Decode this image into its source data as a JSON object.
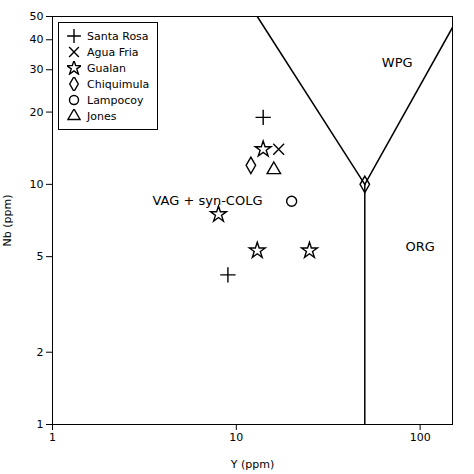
{
  "chart_data": {
    "type": "scatter",
    "xlabel": "Y (ppm)",
    "ylabel": "Nb (ppm)",
    "log": true,
    "xlim": [
      1,
      150
    ],
    "ylim": [
      1,
      50
    ],
    "xticks": [
      1,
      10,
      100
    ],
    "yticks": [
      1,
      2,
      5,
      10,
      20,
      30,
      40,
      50
    ],
    "legend": "upper left",
    "boundaries": [
      {
        "x": [
          13,
          50
        ],
        "values": [
          50,
          10
        ],
        "color": "black",
        "line_style": "solid"
      },
      {
        "x": [
          50,
          150
        ],
        "values": [
          10,
          45
        ],
        "color": "black",
        "line_style": "solid"
      },
      {
        "x": [
          50,
          50
        ],
        "values": [
          10,
          1
        ],
        "color": "black",
        "line_style": "solid"
      }
    ],
    "annotations": [
      {
        "text": "WPG",
        "x": 75,
        "y": 32
      },
      {
        "text": "VAG + syn-COLG",
        "x": 3.5,
        "y": 8.5
      },
      {
        "text": "ORG",
        "x": 100,
        "y": 5.5
      }
    ],
    "series": [
      {
        "name": "Santa Rosa",
        "marker": "plus",
        "color": "black",
        "x": [
          9,
          14
        ],
        "values": [
          4.2,
          19
        ]
      },
      {
        "name": "Agua Fria",
        "marker": "times",
        "color": "black",
        "x": [
          17
        ],
        "values": [
          14
        ]
      },
      {
        "name": "Gualan",
        "marker": "star",
        "color": "black",
        "x": [
          8,
          14,
          13,
          25
        ],
        "values": [
          7.5,
          14,
          5.3,
          5.3
        ]
      },
      {
        "name": "Chiquimula",
        "marker": "diamond",
        "color": "black",
        "x": [
          12,
          50
        ],
        "values": [
          12,
          10
        ]
      },
      {
        "name": "Lampocoy",
        "marker": "circle",
        "color": "black",
        "x": [
          20
        ],
        "values": [
          8.5
        ]
      },
      {
        "name": "Jones",
        "marker": "triangle",
        "color": "black",
        "x": [
          16
        ],
        "values": [
          11.5
        ]
      }
    ]
  }
}
